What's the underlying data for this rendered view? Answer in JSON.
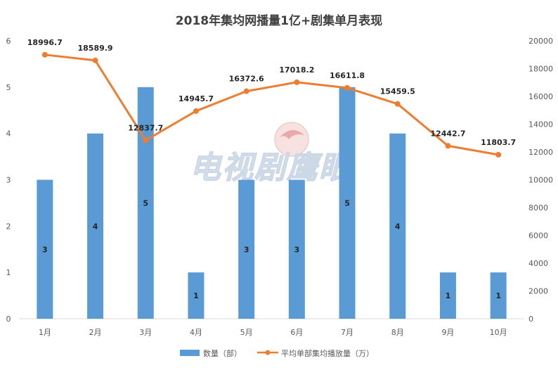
{
  "chart_data": {
    "type": "bar+line",
    "title": "2018年集均网播量1亿+剧集单月表现",
    "categories": [
      "1月",
      "2月",
      "3月",
      "4月",
      "5月",
      "6月",
      "7月",
      "8月",
      "9月",
      "10月"
    ],
    "series": [
      {
        "name": "数量（部）",
        "type": "bar",
        "axis": "left",
        "color": "#5b9bd5",
        "values": [
          3,
          4,
          5,
          1,
          3,
          3,
          5,
          4,
          1,
          1
        ]
      },
      {
        "name": "平均单部集均播放量（万）",
        "type": "line",
        "axis": "right",
        "color": "#ed7d31",
        "values": [
          18996.7,
          18589.9,
          12837.7,
          14945.7,
          16372.6,
          17018.2,
          16611.8,
          15459.5,
          12442.7,
          11803.7
        ]
      }
    ],
    "y_left": {
      "min": 0,
      "max": 6,
      "ticks": [
        0,
        1,
        2,
        3,
        4,
        5,
        6
      ]
    },
    "y_right": {
      "min": 0,
      "max": 20000,
      "ticks": [
        0,
        2000,
        4000,
        6000,
        8000,
        10000,
        12000,
        14000,
        16000,
        18000,
        20000
      ]
    },
    "legend_position": "bottom",
    "watermark": "电视剧鹰眼"
  }
}
